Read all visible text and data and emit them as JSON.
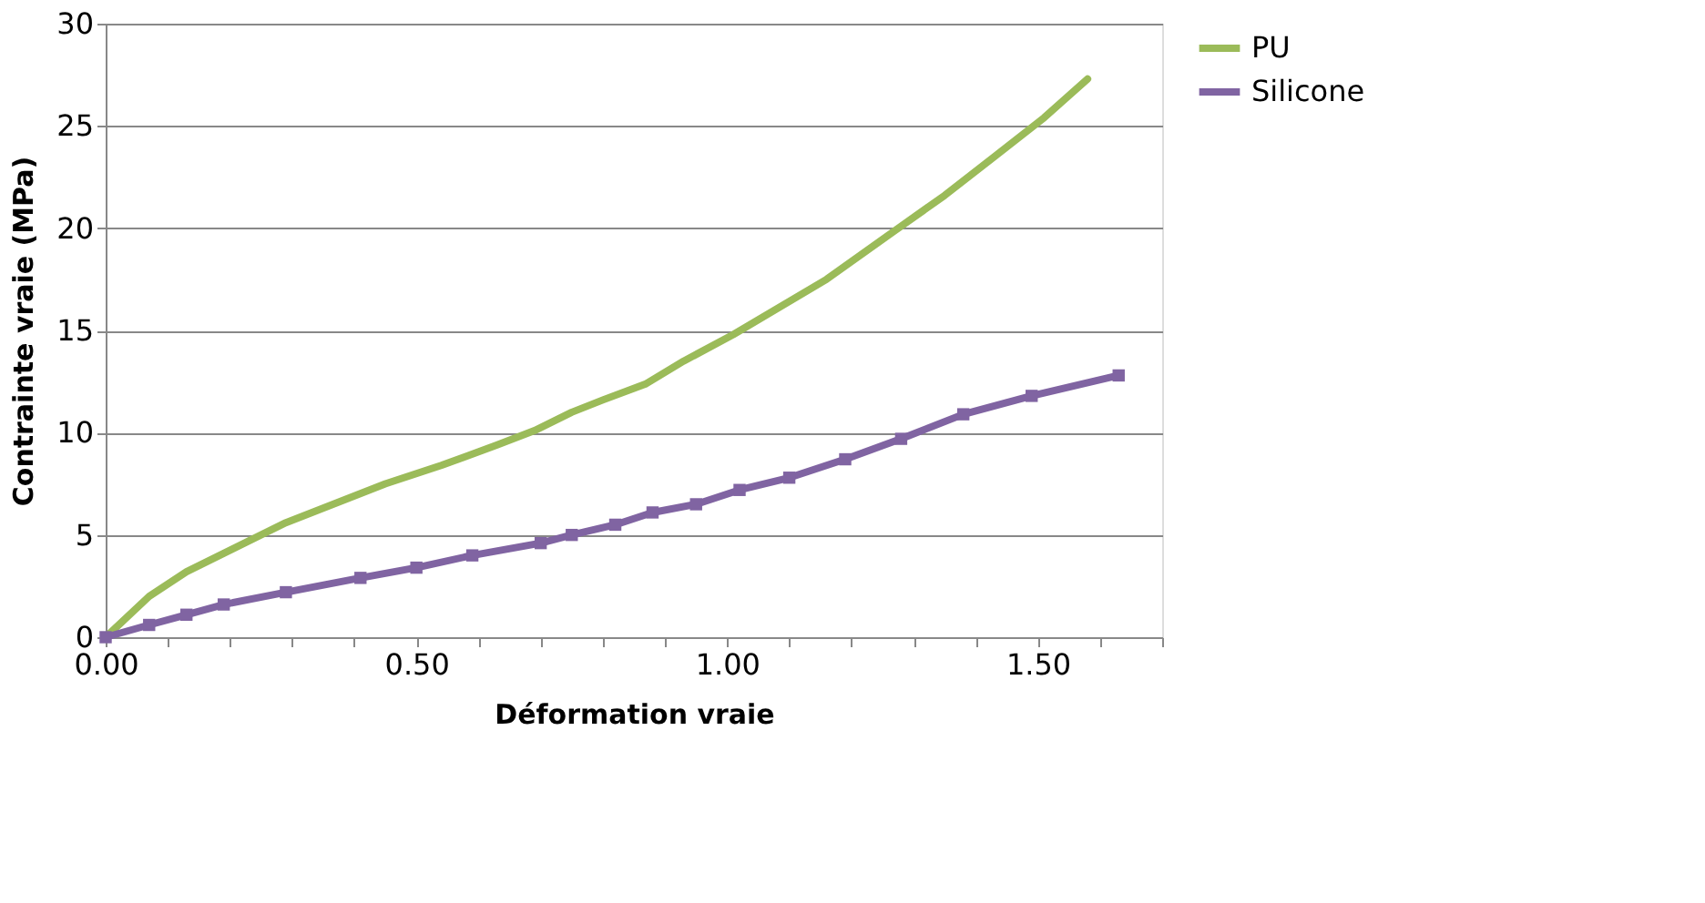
{
  "chart_data": {
    "type": "line",
    "xlabel": "Déformation vraie",
    "ylabel": "Contrainte vraie (MPa)",
    "xlim": [
      0,
      1.7
    ],
    "ylim": [
      0,
      30
    ],
    "xticks": [
      {
        "value": 0,
        "label": "0.00"
      },
      {
        "value": 0.1,
        "label": null
      },
      {
        "value": 0.2,
        "label": null
      },
      {
        "value": 0.3,
        "label": null
      },
      {
        "value": 0.4,
        "label": null
      },
      {
        "value": 0.5,
        "label": "0.50"
      },
      {
        "value": 0.6,
        "label": null
      },
      {
        "value": 0.7,
        "label": null
      },
      {
        "value": 0.8,
        "label": null
      },
      {
        "value": 0.9,
        "label": null
      },
      {
        "value": 1.0,
        "label": "1.00"
      },
      {
        "value": 1.1,
        "label": null
      },
      {
        "value": 1.2,
        "label": null
      },
      {
        "value": 1.3,
        "label": null
      },
      {
        "value": 1.4,
        "label": null
      },
      {
        "value": 1.5,
        "label": "1.50"
      },
      {
        "value": 1.6,
        "label": null
      },
      {
        "value": 1.7,
        "label": null
      }
    ],
    "yticks": [
      0,
      5,
      10,
      15,
      20,
      25,
      30
    ],
    "grid": "y",
    "legend": "right",
    "series": [
      {
        "name": "PU",
        "color": "#9bbb59",
        "marker": "none",
        "x": [
          0,
          0.07,
          0.13,
          0.19,
          0.29,
          0.45,
          0.54,
          0.63,
          0.69,
          0.75,
          0.8,
          0.87,
          0.93,
          1.01,
          1.16,
          1.28,
          1.35,
          1.43,
          1.51,
          1.58
        ],
        "values": [
          0,
          2.0,
          3.2,
          4.1,
          5.6,
          7.5,
          8.4,
          9.4,
          10.1,
          11.0,
          11.6,
          12.4,
          13.5,
          14.8,
          17.5,
          20.1,
          21.6,
          23.5,
          25.4,
          27.3
        ]
      },
      {
        "name": "Silicone",
        "color": "#8064a2",
        "marker": "square",
        "x": [
          0,
          0.07,
          0.13,
          0.19,
          0.29,
          0.41,
          0.5,
          0.59,
          0.7,
          0.75,
          0.82,
          0.88,
          0.95,
          1.02,
          1.1,
          1.19,
          1.28,
          1.38,
          1.49,
          1.63
        ],
        "values": [
          0,
          0.6,
          1.1,
          1.6,
          2.2,
          2.9,
          3.4,
          4.0,
          4.6,
          5.0,
          5.5,
          6.1,
          6.5,
          7.2,
          7.8,
          8.7,
          9.7,
          10.9,
          11.8,
          12.8
        ]
      }
    ]
  }
}
